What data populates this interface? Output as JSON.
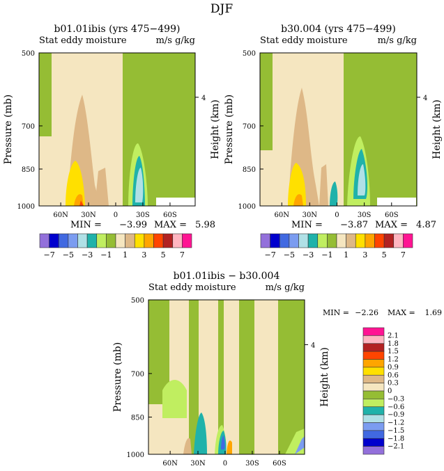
{
  "chart_data": {
    "type": "heatmap",
    "figure_title": "DJF",
    "panels": [
      {
        "title": "b01.01ibis (yrs 475−499)",
        "subtitle_left": "Stat eddy moisture",
        "subtitle_right": "m/s g/kg",
        "ylabel": "Pressure (mb)",
        "ylabel_right": "Height (km)",
        "y_ticks": [
          "500",
          "700",
          "850",
          "1000"
        ],
        "y_right_ticks": [
          "4"
        ],
        "x_ticks": [
          "60N",
          "30N",
          "0",
          "30S",
          "60S"
        ],
        "min_label": "MIN =",
        "min_value": "−3.99",
        "max_label": "MAX =",
        "max_value": "5.98",
        "colorbar_labels": [
          "−7",
          "−5",
          "−3",
          "−1",
          "1",
          "3",
          "5",
          "7"
        ]
      },
      {
        "title": "b30.004 (yrs 475−499)",
        "subtitle_left": "Stat eddy moisture",
        "subtitle_right": "m/s g/kg",
        "ylabel": "Pressure (mb)",
        "ylabel_right": "Height (km)",
        "y_ticks": [
          "500",
          "700",
          "850",
          "1000"
        ],
        "y_right_ticks": [
          "4"
        ],
        "x_ticks": [
          "60N",
          "30N",
          "0",
          "30S",
          "60S"
        ],
        "min_label": "MIN =",
        "min_value": "−3.87",
        "max_label": "MAX =",
        "max_value": "4.87",
        "colorbar_labels": [
          "−7",
          "−5",
          "−3",
          "−1",
          "1",
          "3",
          "5",
          "7"
        ]
      },
      {
        "title": "b01.01ibis − b30.004",
        "subtitle_left": "Stat eddy moisture",
        "subtitle_right": "m/s g/kg",
        "ylabel": "Pressure (mb)",
        "ylabel_right": "Height (km)",
        "y_ticks": [
          "500",
          "700",
          "850",
          "1000"
        ],
        "y_right_ticks": [
          "4"
        ],
        "x_ticks": [
          "60N",
          "30N",
          "0",
          "30S",
          "60S"
        ],
        "min_label": "MIN =",
        "min_value": "−2.26",
        "max_label": "MAX =",
        "max_value": "1.69",
        "colorbar_labels": [
          "2.1",
          "1.8",
          "1.5",
          "1.2",
          "0.9",
          "0.6",
          "0.3",
          "0",
          "−0.3",
          "−0.6",
          "−0.9",
          "−1.2",
          "−1.5",
          "−1.8",
          "−2.1"
        ]
      }
    ],
    "colors": [
      "#9370db",
      "#0000cd",
      "#4169e1",
      "#7b9cf0",
      "#b0e0e6",
      "#20b2aa",
      "#c0ee60",
      "#95bd34",
      "#f5e6c0",
      "#deb887",
      "#ffe000",
      "#ffa500",
      "#ff4500",
      "#b22222",
      "#ffb6c1",
      "#ff1493"
    ]
  }
}
